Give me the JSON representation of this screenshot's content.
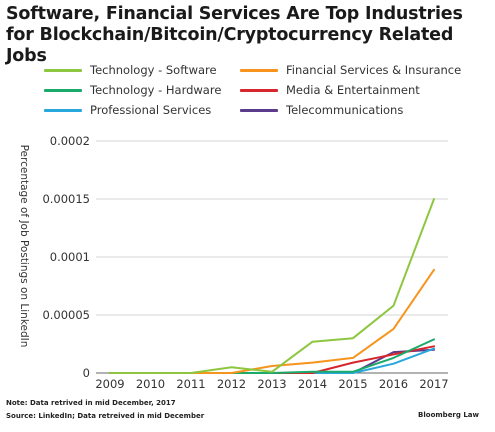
{
  "header": {
    "title": "Software, Financial Services Are Top Industries for Blockchain/Bitcoin/Cryptocurrency Related Jobs"
  },
  "footer": {
    "note": "Note: Data retrived in mid December, 2017",
    "source": "Source: LinkedIn; Data retreived in mid December",
    "brand": "Bloomberg Law"
  },
  "chart_data": {
    "type": "line",
    "title": "Software, Financial Services Are Top Industries for Blockchain/Bitcoin/Cryptocurrency Related Jobs",
    "xlabel": "",
    "ylabel": "Percentage of Job Postings on LinkedIn",
    "x": [
      2009,
      2010,
      2011,
      2012,
      2013,
      2014,
      2015,
      2016,
      2017
    ],
    "ylim": [
      0,
      0.0002
    ],
    "yticks": [
      0,
      5e-05,
      0.0001,
      0.00015,
      0.0002
    ],
    "ytick_labels": [
      "0",
      "0.00005",
      "0.0001",
      "0.00015",
      "0.0002"
    ],
    "grid": "horizontal",
    "legend_position": "top",
    "series": [
      {
        "name": "Technology - Software",
        "color": "#8dc63f",
        "values": [
          0,
          0,
          0,
          5e-06,
          1e-06,
          2.7e-05,
          3e-05,
          5.8e-05,
          0.00015
        ]
      },
      {
        "name": "Financial Services & Insurance",
        "color": "#f7941d",
        "values": [
          0,
          0,
          0,
          0,
          6e-06,
          9e-06,
          1.3e-05,
          3.8e-05,
          8.9e-05
        ]
      },
      {
        "name": "Technology - Hardware",
        "color": "#1aaa6b",
        "values": [
          0,
          0,
          0,
          0,
          0,
          1e-06,
          1e-06,
          1.3e-05,
          2.9e-05
        ]
      },
      {
        "name": "Media & Entertainment",
        "color": "#d7262e",
        "values": [
          0,
          0,
          0,
          0,
          0,
          0,
          9e-06,
          1.6e-05,
          2.3e-05
        ]
      },
      {
        "name": "Professional Services",
        "color": "#29a8dd",
        "values": [
          0,
          0,
          0,
          0,
          0,
          0,
          0,
          8e-06,
          2.1e-05
        ]
      },
      {
        "name": "Telecommunications",
        "color": "#5b3b8c",
        "values": [
          0,
          0,
          0,
          0,
          0,
          0,
          0,
          1.8e-05,
          2e-05
        ]
      }
    ]
  }
}
